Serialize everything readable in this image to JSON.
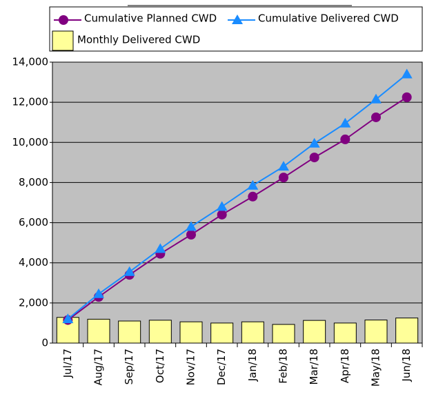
{
  "chart_data": {
    "type": "combo",
    "categories": [
      "Jul/17",
      "Aug/17",
      "Sep/17",
      "Oct/17",
      "Nov/17",
      "Dec/17",
      "Jan/18",
      "Feb/18",
      "Mar/18",
      "Apr/18",
      "May/18",
      "Jun/18"
    ],
    "series": [
      {
        "name": "Monthly Delivered CWD",
        "type": "bar",
        "color": "#ffff99",
        "values": [
          1280,
          1190,
          1100,
          1140,
          1060,
          1000,
          1060,
          930,
          1130,
          1000,
          1150,
          1250
        ]
      },
      {
        "name": "Cumulative Planned CWD",
        "type": "line",
        "marker": "circle",
        "color": "#800080",
        "values": [
          1150,
          2300,
          3400,
          4450,
          5400,
          6400,
          7300,
          8250,
          9250,
          10150,
          11250,
          12250
        ]
      },
      {
        "name": "Cumulative Delivered CWD",
        "type": "line",
        "marker": "triangle",
        "color": "#1a8cff",
        "values": [
          1200,
          2450,
          3550,
          4700,
          5800,
          6800,
          7850,
          8800,
          9950,
          10950,
          12150,
          13400
        ]
      }
    ],
    "ylim": [
      0,
      14000
    ],
    "yticks": [
      0,
      {
        "value": 2000,
        "label": "2,000"
      },
      {
        "value": 4000,
        "label": "4,000"
      },
      {
        "value": 6000,
        "label": "6,000"
      },
      {
        "value": 8000,
        "label": "8,000"
      },
      {
        "value": 10000,
        "label": "10,000"
      },
      {
        "value": 12000,
        "label": "12,000"
      },
      {
        "value": 14000,
        "label": "14,000"
      }
    ],
    "grid": true,
    "plot_background": "#c0c0c0"
  }
}
